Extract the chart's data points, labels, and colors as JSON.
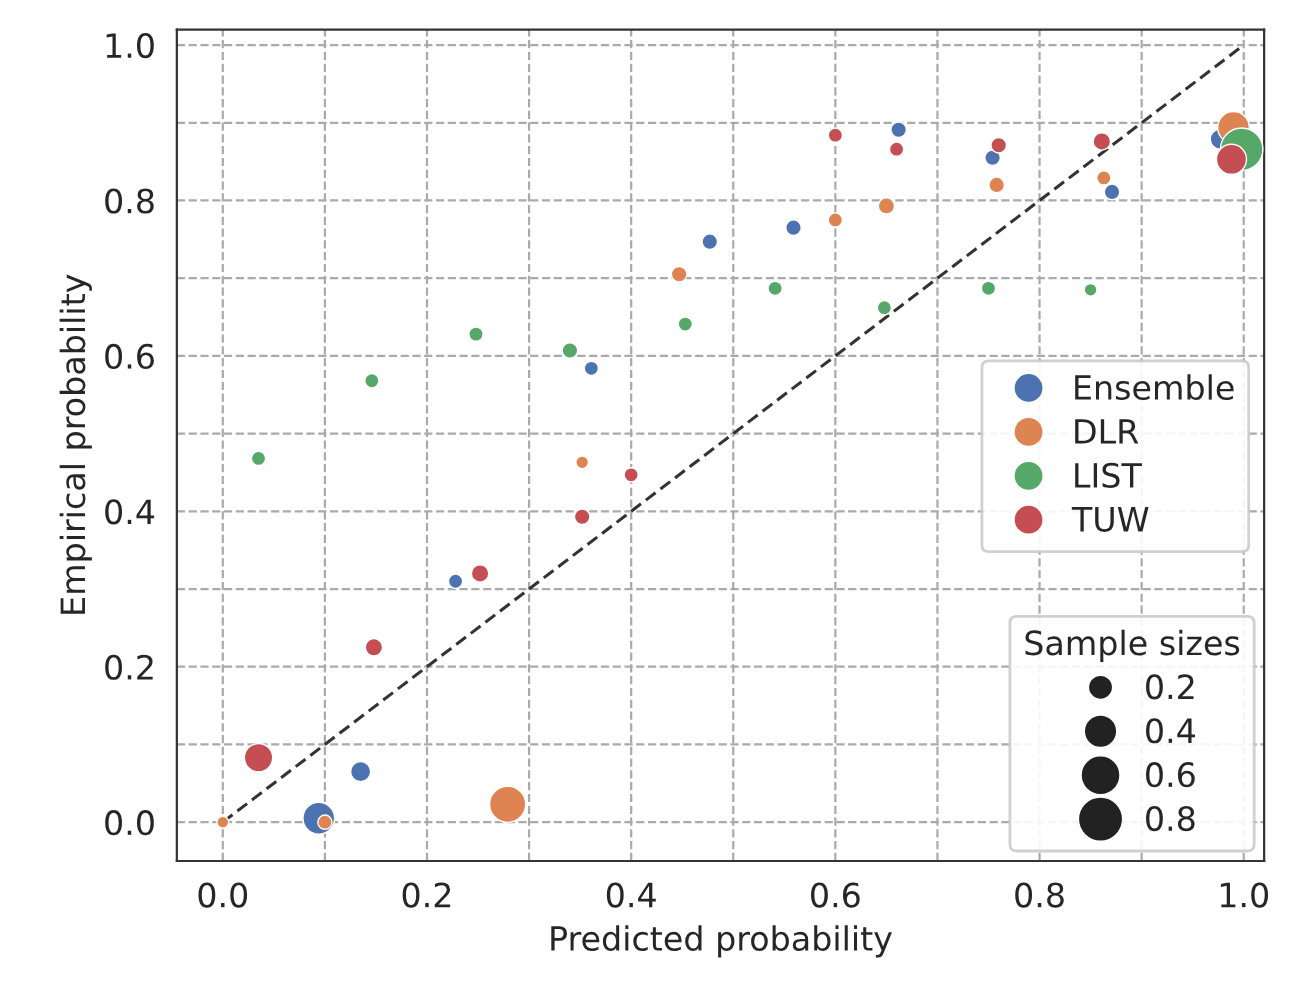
{
  "chart_data": {
    "type": "scatter",
    "xlabel": "Predicted probability",
    "ylabel": "Empirical probability",
    "xlim": [
      -0.045,
      1.02
    ],
    "ylim": [
      -0.05,
      1.02
    ],
    "xticks": [
      {
        "value": 0,
        "label": "0.0"
      },
      {
        "value": 0.1,
        "label": null
      },
      0.2,
      {
        "value": 0.3,
        "label": null
      },
      0.4,
      {
        "value": 0.5,
        "label": null
      },
      0.6,
      {
        "value": 0.7,
        "label": null
      },
      0.8,
      {
        "value": 0.9,
        "label": null
      },
      {
        "value": 1,
        "label": "1.0"
      }
    ],
    "yticks": [
      {
        "value": 0,
        "label": "0.0"
      },
      {
        "value": 0.1,
        "label": null
      },
      0.2,
      {
        "value": 0.3,
        "label": null
      },
      0.4,
      {
        "value": 0.5,
        "label": null
      },
      0.6,
      {
        "value": 0.7,
        "label": null
      },
      0.8,
      {
        "value": 0.9,
        "label": null
      },
      {
        "value": 1,
        "label": "1.0"
      }
    ],
    "grid": true,
    "legend": "bottom right",
    "legend_title": "Sample sizes",
    "size_legend": [
      0.2,
      0.4,
      0.6,
      0.8
    ],
    "marker": "circle",
    "series": [
      {
        "type": "line",
        "color": "#333333",
        "line_style": "dashed",
        "marker": "none",
        "x": [
          0,
          1
        ],
        "values": [
          0,
          1
        ]
      },
      {
        "name": "Ensemble",
        "color": "#4c72b0",
        "x": [
          0.094,
          0.135,
          0.228,
          0.361,
          0.477,
          0.559,
          0.662,
          0.754,
          0.871,
          0.977
        ],
        "values": [
          0.005,
          0.065,
          0.31,
          0.584,
          0.747,
          0.765,
          0.891,
          0.855,
          0.811,
          0.879
        ],
        "sizes": [
          0.5,
          0.2,
          0.1,
          0.1,
          0.12,
          0.12,
          0.12,
          0.12,
          0.12,
          0.2
        ]
      },
      {
        "name": "DLR",
        "color": "#dd8452",
        "x": [
          0.0,
          0.1,
          0.279,
          0.352,
          0.447,
          0.6,
          0.65,
          0.758,
          0.863,
          0.99
        ],
        "values": [
          0.0,
          0.0,
          0.023,
          0.463,
          0.705,
          0.775,
          0.793,
          0.82,
          0.829,
          0.894
        ],
        "sizes": [
          0.07,
          0.1,
          0.65,
          0.08,
          0.12,
          0.1,
          0.13,
          0.12,
          0.1,
          0.5
        ]
      },
      {
        "name": "LIST",
        "color": "#55a868",
        "x": [
          0.035,
          0.146,
          0.248,
          0.34,
          0.453,
          0.541,
          0.648,
          0.75,
          0.85,
          0.998
        ],
        "values": [
          0.468,
          0.568,
          0.628,
          0.607,
          0.641,
          0.687,
          0.662,
          0.687,
          0.685,
          0.866
        ],
        "sizes": [
          0.1,
          0.1,
          0.1,
          0.12,
          0.1,
          0.1,
          0.1,
          0.1,
          0.08,
          0.9
        ]
      },
      {
        "name": "TUW",
        "color": "#c44e52",
        "x": [
          0.035,
          0.148,
          0.252,
          0.352,
          0.4,
          0.6,
          0.66,
          0.76,
          0.861,
          0.988
        ],
        "values": [
          0.083,
          0.225,
          0.32,
          0.393,
          0.447,
          0.884,
          0.866,
          0.871,
          0.876,
          0.853
        ],
        "sizes": [
          0.4,
          0.15,
          0.15,
          0.12,
          0.1,
          0.1,
          0.1,
          0.12,
          0.15,
          0.45
        ]
      }
    ]
  }
}
